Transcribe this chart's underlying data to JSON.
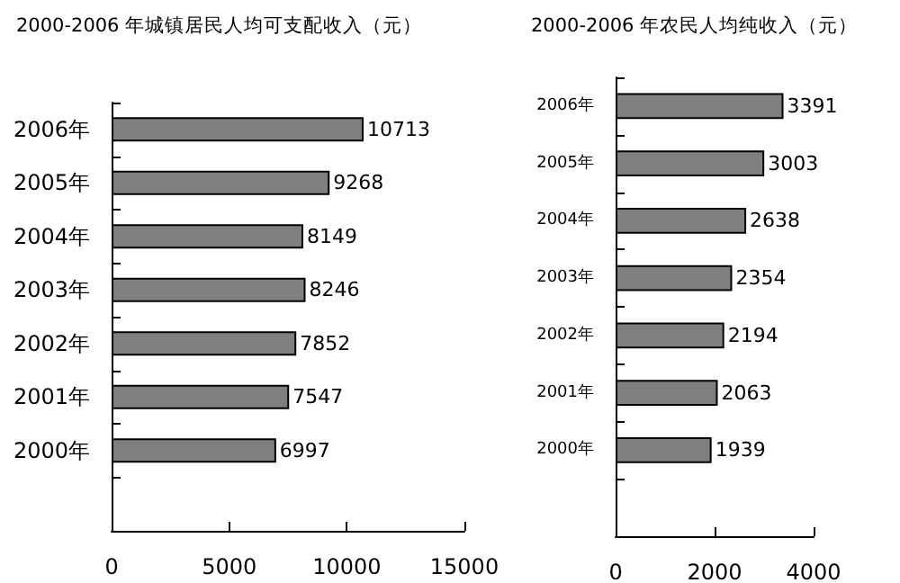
{
  "chart_data": [
    {
      "type": "bar",
      "orientation": "horizontal",
      "title": "2000-2006 年城镇居民人均可支配收入（元）",
      "categories": [
        "2006年",
        "2005年",
        "2004年",
        "2003年",
        "2002年",
        "2001年",
        "2000年",
        null
      ],
      "values": [
        10713,
        9268,
        8149,
        8246,
        7852,
        7547,
        6997,
        null
      ],
      "color": "#7f7f7f",
      "xlim": [
        0,
        15000
      ],
      "xticks": [
        0,
        5000,
        10000,
        15000
      ],
      "data_labels": true,
      "grid": false
    },
    {
      "type": "bar",
      "orientation": "horizontal",
      "title": "2000-2006 年农民人均纯收入（元）",
      "categories": [
        "2006年",
        "2005年",
        "2004年",
        "2003年",
        "2002年",
        "2001年",
        "2000年",
        null
      ],
      "values": [
        3391,
        3003,
        2638,
        2354,
        2194,
        2063,
        1939,
        null
      ],
      "color": "#7f7f7f",
      "xlim": [
        0,
        4000
      ],
      "xticks": [
        0,
        2000,
        4000
      ],
      "data_labels": true,
      "grid": false
    }
  ]
}
